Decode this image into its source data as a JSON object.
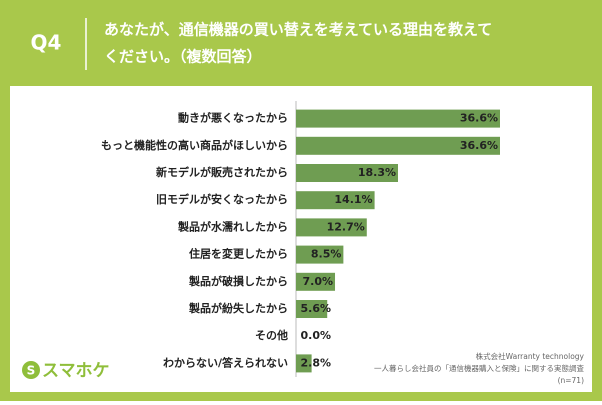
{
  "header": {
    "question": "Q4",
    "title_lines": [
      "あなたが、通信機器の買い替えを考えている理由を教えて",
      "ください。（複数回答）"
    ]
  },
  "chart_data": {
    "type": "bar",
    "orientation": "horizontal",
    "color": "#6f9d52",
    "categories": [
      "動きが悪くなったから",
      "もっと機能性の高い商品がほしいから",
      "新モデルが販売されたから",
      "旧モデルが安くなったから",
      "製品が水濡れしたから",
      "住居を変更したから",
      "製品が破損したから",
      "製品が紛失したから",
      "その他",
      "わからない/答えられない"
    ],
    "values": [
      36.6,
      36.6,
      18.3,
      14.1,
      12.7,
      8.5,
      7.0,
      5.6,
      0.0,
      2.8
    ],
    "value_labels": [
      "36.6%",
      "36.6%",
      "18.3%",
      "14.1%",
      "12.7%",
      "8.5%",
      "7.0%",
      "5.6%",
      "0.0%",
      "2.8%"
    ]
  },
  "logo": "スマホケ",
  "source_lines": [
    "株式会社Warranty technology",
    "一人暮らし会社員の「通信機器購入と保険」に関する実態調査",
    "(n=71)"
  ]
}
